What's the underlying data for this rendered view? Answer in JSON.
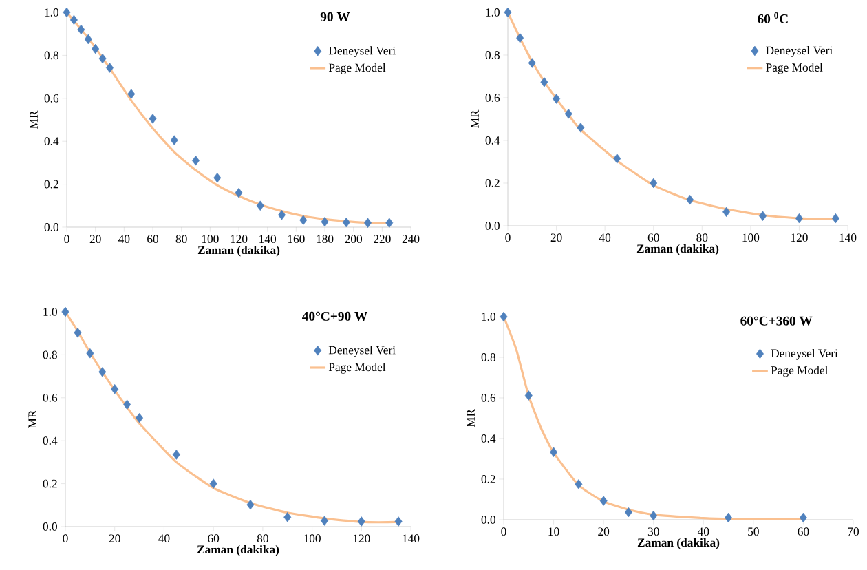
{
  "chart_data": [
    {
      "type": "scatter",
      "title": "90 W",
      "xlabel": "Zaman (dakika)",
      "ylabel": "MR",
      "xlim": [
        0,
        240
      ],
      "ylim": [
        0,
        1
      ],
      "legend": "top right",
      "xticks": [
        0,
        20,
        40,
        60,
        80,
        100,
        120,
        140,
        160,
        180,
        200,
        220,
        240
      ],
      "yticks": [
        {
          "value": 0,
          "label": "0.0"
        },
        {
          "value": 0.2,
          "label": "0.2"
        },
        {
          "value": 0.4,
          "label": "0.4"
        },
        {
          "value": 0.6,
          "label": "0.6"
        },
        {
          "value": 0.8,
          "label": "0.8"
        },
        {
          "value": 1,
          "label": "1.0"
        }
      ],
      "series": [
        {
          "name": "Deneysel Veri",
          "marker": "diamond",
          "color": "#4f81bd",
          "x": [
            0,
            5,
            10,
            15,
            20,
            25,
            30,
            45,
            60,
            75,
            90,
            105,
            120,
            135,
            150,
            165,
            180,
            195,
            210,
            225
          ],
          "values": [
            1.0,
            0.965,
            0.92,
            0.875,
            0.83,
            0.785,
            0.742,
            0.62,
            0.505,
            0.405,
            0.31,
            0.23,
            0.16,
            0.1,
            0.057,
            0.033,
            0.025,
            0.022,
            0.02,
            0.02
          ]
        },
        {
          "name": "Page Model",
          "type": "line",
          "color": "#fac090",
          "x": [
            0,
            15,
            30,
            45,
            60,
            75,
            90,
            105,
            120,
            135,
            150,
            165,
            180,
            195,
            210,
            225
          ],
          "values": [
            1.0,
            0.88,
            0.74,
            0.59,
            0.46,
            0.35,
            0.265,
            0.195,
            0.145,
            0.105,
            0.075,
            0.052,
            0.037,
            0.027,
            0.02,
            0.02
          ]
        }
      ]
    },
    {
      "type": "scatter",
      "title": "60 $^{0}$C",
      "xlabel": "Zaman (dakika)",
      "ylabel": "MR",
      "xlim": [
        0,
        140
      ],
      "ylim": [
        0,
        1
      ],
      "legend": "top right",
      "xticks": [
        0,
        20,
        40,
        60,
        80,
        100,
        120,
        140
      ],
      "yticks": [
        {
          "value": 0,
          "label": "0.0"
        },
        {
          "value": 0.2,
          "label": "0.2"
        },
        {
          "value": 0.4,
          "label": "0.4"
        },
        {
          "value": 0.6,
          "label": "0.6"
        },
        {
          "value": 0.8,
          "label": "0.8"
        },
        {
          "value": 1,
          "label": "1.0"
        }
      ],
      "series": [
        {
          "name": "Deneysel Veri",
          "marker": "diamond",
          "color": "#4f81bd",
          "x": [
            0,
            5,
            10,
            15,
            20,
            25,
            30,
            45,
            60,
            75,
            90,
            105,
            120,
            135
          ],
          "values": [
            1.0,
            0.88,
            0.763,
            0.673,
            0.595,
            0.525,
            0.46,
            0.315,
            0.2,
            0.122,
            0.065,
            0.046,
            0.035,
            0.035
          ]
        },
        {
          "name": "Page Model",
          "type": "line",
          "color": "#fac090",
          "x": [
            0,
            5,
            10,
            15,
            20,
            25,
            30,
            45,
            60,
            75,
            90,
            105,
            120,
            127,
            135
          ],
          "values": [
            1.0,
            0.88,
            0.77,
            0.675,
            0.595,
            0.52,
            0.45,
            0.305,
            0.19,
            0.12,
            0.078,
            0.05,
            0.035,
            0.032,
            0.033
          ]
        }
      ]
    },
    {
      "type": "scatter",
      "title": "40°C+90 W",
      "xlabel": "Zaman (dakika)",
      "ylabel": "MR",
      "xlim": [
        0,
        140
      ],
      "ylim": [
        0,
        1
      ],
      "legend": "top right",
      "xticks": [
        0,
        20,
        40,
        60,
        80,
        100,
        120,
        140
      ],
      "yticks": [
        {
          "value": 0,
          "label": "0.0"
        },
        {
          "value": 0.2,
          "label": "0.2"
        },
        {
          "value": 0.4,
          "label": "0.4"
        },
        {
          "value": 0.6,
          "label": "0.6"
        },
        {
          "value": 0.8,
          "label": "0.8"
        },
        {
          "value": 1,
          "label": "1.0"
        }
      ],
      "series": [
        {
          "name": "Deneysel Veri",
          "marker": "diamond",
          "color": "#4f81bd",
          "x": [
            0,
            5,
            10,
            15,
            20,
            25,
            30,
            45,
            60,
            75,
            90,
            105,
            120,
            135
          ],
          "values": [
            1.0,
            0.903,
            0.807,
            0.72,
            0.64,
            0.568,
            0.506,
            0.335,
            0.2,
            0.102,
            0.044,
            0.027,
            0.024,
            0.024
          ]
        },
        {
          "name": "Page Model",
          "type": "line",
          "color": "#fac090",
          "x": [
            0,
            5,
            10,
            15,
            20,
            25,
            30,
            45,
            60,
            75,
            90,
            105,
            120,
            127,
            135
          ],
          "values": [
            1.0,
            0.91,
            0.81,
            0.72,
            0.635,
            0.555,
            0.48,
            0.3,
            0.18,
            0.11,
            0.065,
            0.038,
            0.022,
            0.02,
            0.022
          ]
        }
      ]
    },
    {
      "type": "scatter",
      "title": "60°C+360 W",
      "xlabel": "Zaman (dakika)",
      "ylabel": "MR",
      "xlim": [
        0,
        70
      ],
      "ylim": [
        0,
        1
      ],
      "legend": "top right",
      "xticks": [
        0,
        10,
        20,
        30,
        40,
        50,
        60,
        70
      ],
      "yticks": [
        {
          "value": 0,
          "label": "0.0"
        },
        {
          "value": 0.2,
          "label": "0.2"
        },
        {
          "value": 0.4,
          "label": "0.4"
        },
        {
          "value": 0.6,
          "label": "0.6"
        },
        {
          "value": 0.8,
          "label": "0.8"
        },
        {
          "value": 1,
          "label": "1.0"
        }
      ],
      "series": [
        {
          "name": "Deneysel Veri",
          "marker": "diamond",
          "color": "#4f81bd",
          "x": [
            0,
            5,
            10,
            15,
            20,
            25,
            30,
            45,
            60
          ],
          "values": [
            1.0,
            0.612,
            0.333,
            0.175,
            0.093,
            0.037,
            0.02,
            0.01,
            0.01
          ]
        },
        {
          "name": "Page Model",
          "type": "line",
          "color": "#fac090",
          "x": [
            0,
            2.5,
            5,
            7.5,
            10,
            15,
            20,
            25,
            30,
            40,
            45,
            50,
            60
          ],
          "values": [
            1.0,
            0.84,
            0.61,
            0.45,
            0.33,
            0.17,
            0.09,
            0.05,
            0.025,
            0.008,
            0.004,
            0.002,
            0.003
          ]
        }
      ]
    }
  ]
}
